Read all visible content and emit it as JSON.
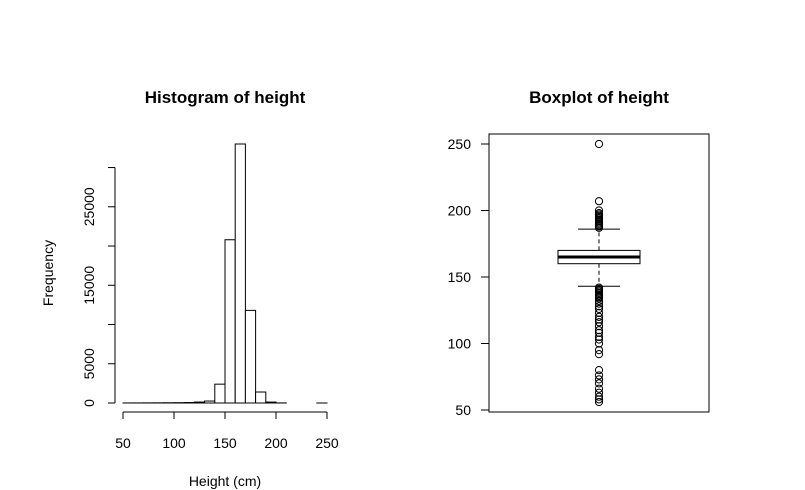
{
  "chart_data": [
    {
      "type": "bar",
      "title": "Histogram of height",
      "xlabel": "Height (cm)",
      "ylabel": "Frequency",
      "bin_edges": [
        50,
        60,
        70,
        80,
        90,
        100,
        110,
        120,
        130,
        140,
        150,
        160,
        170,
        180,
        190,
        200,
        210,
        220,
        230,
        240,
        250
      ],
      "values": [
        5,
        10,
        15,
        20,
        30,
        40,
        60,
        120,
        250,
        2400,
        20800,
        33000,
        11800,
        1400,
        120,
        10,
        0,
        0,
        0,
        1
      ],
      "xlim": [
        50,
        250
      ],
      "ylim": [
        0,
        33000
      ],
      "x_ticks": [
        50,
        100,
        150,
        200,
        250
      ],
      "y_ticks": [
        0,
        5000,
        15000,
        25000
      ],
      "grid": false
    },
    {
      "type": "boxplot",
      "title": "Boxplot of height",
      "ylim": [
        50,
        250
      ],
      "y_ticks": [
        50,
        100,
        150,
        200,
        250
      ],
      "whisker_low": 143,
      "q1": 160,
      "median": 165,
      "q3": 170,
      "whisker_high": 186,
      "outliers": [
        56,
        58,
        60,
        63,
        66,
        70,
        73,
        76,
        80,
        92,
        95,
        100,
        103,
        105,
        108,
        110,
        113,
        116,
        118,
        120,
        123,
        126,
        128,
        130,
        132,
        134,
        135,
        136,
        137,
        138,
        139,
        140,
        141,
        142,
        187,
        188,
        189,
        190,
        191,
        192,
        193,
        194,
        195,
        196,
        197,
        198,
        200,
        207,
        250
      ],
      "grid": false
    }
  ]
}
